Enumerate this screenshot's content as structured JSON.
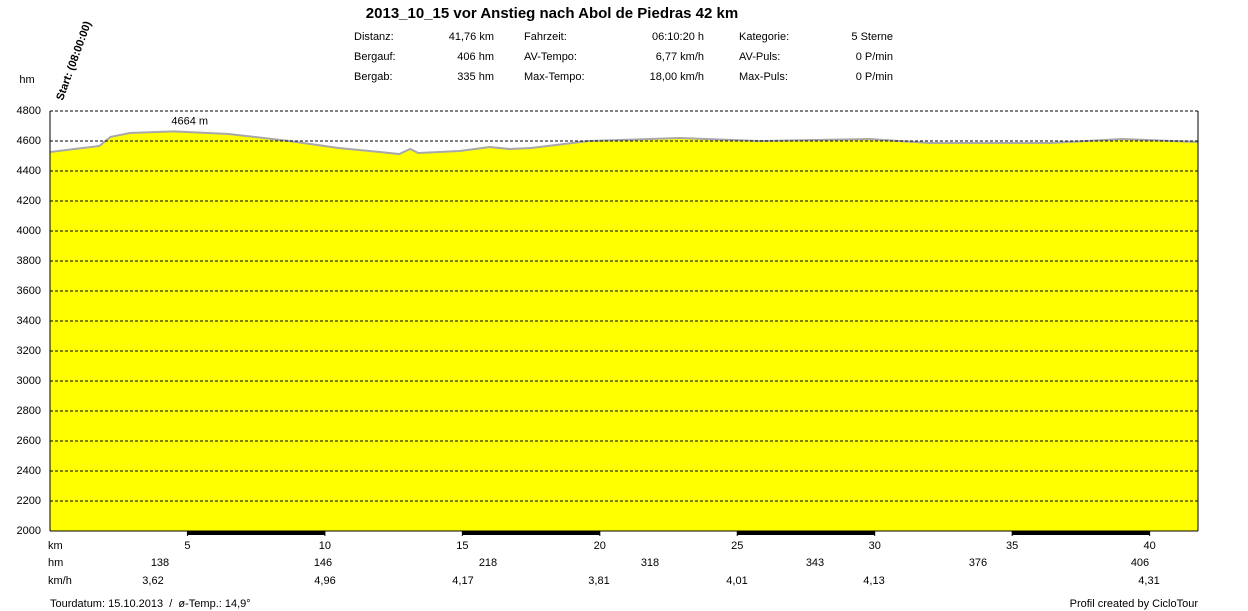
{
  "chart_data": {
    "type": "area",
    "title": "2013_10_15 vor Anstieg nach Abol de Piedras 42 km",
    "start_label": "Start: (08:00:00)",
    "ylabel": "hm",
    "xlabel": "km",
    "x": [
      0,
      1.8,
      2.2,
      2.9,
      4.5,
      6.5,
      8.7,
      10.5,
      12,
      12.7,
      13.1,
      13.4,
      14.9,
      16,
      16.7,
      17.5,
      19.6,
      22.9,
      25.8,
      29.8,
      32,
      36.4,
      39,
      41.76
    ],
    "values": [
      4527,
      4567,
      4627,
      4653,
      4664,
      4647,
      4600,
      4553,
      4527,
      4513,
      4547,
      4520,
      4533,
      4560,
      4547,
      4553,
      4600,
      4620,
      4600,
      4613,
      4587,
      4587,
      4613,
      4593
    ],
    "color": "#ffff00",
    "line_color": "#a8a8a8",
    "xlim": [
      0,
      41.76
    ],
    "xticks": [
      5,
      10,
      15,
      20,
      25,
      30,
      35,
      40
    ],
    "ylim": [
      2000,
      4800
    ],
    "yticks": [
      2000,
      2200,
      2400,
      2600,
      2800,
      3000,
      3200,
      3400,
      3600,
      3800,
      4000,
      4200,
      4400,
      4600,
      4800
    ],
    "grid": true,
    "annotation": {
      "text": "4664 m",
      "x": 4.5,
      "y": 4664
    },
    "info": [
      [
        [
          "Distanz:",
          "41,76 km"
        ],
        [
          "Fahrzeit:",
          "06:10:20 h"
        ],
        [
          "Kategorie:",
          "5 Sterne"
        ]
      ],
      [
        [
          "Bergauf:",
          "406 hm"
        ],
        [
          "AV-Tempo:",
          "6,77 km/h"
        ],
        [
          "AV-Puls:",
          "0 P/min"
        ]
      ],
      [
        [
          "Bergab:",
          "335 hm"
        ],
        [
          "Max-Tempo:",
          "18,00 km/h"
        ],
        [
          "Max-Puls:",
          "0 P/min"
        ]
      ]
    ],
    "rows": [
      {
        "label": "hm",
        "values": [
          "138",
          "146",
          "218",
          "318",
          "343",
          "376",
          "406"
        ]
      },
      {
        "label": "km/h",
        "values": [
          "3,62",
          "4,96",
          "4,17",
          "3,81",
          "4,01",
          "4,13",
          "4,31"
        ]
      }
    ],
    "footer_left": "Tourdatum: 15.10.2013  /  ø-Temp.: 14,9°",
    "footer_right": "Profil created by CicloTour"
  }
}
